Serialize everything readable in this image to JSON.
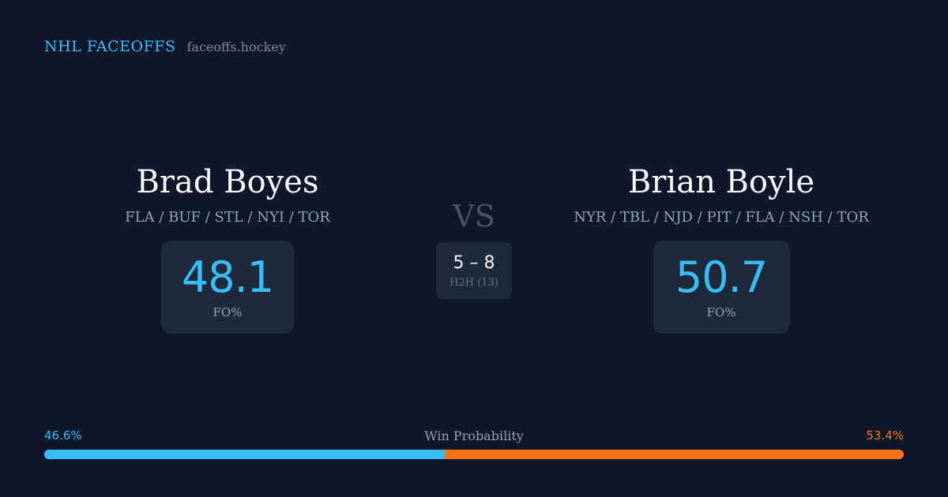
{
  "header": {
    "brand": "NHL FACEOFFS",
    "site": "faceoffs.hockey"
  },
  "player_left": {
    "name": "Brad Boyes",
    "teams": "FLA / BUF / STL / NYI / TOR",
    "stat_value": "48.1",
    "stat_label": "FO%"
  },
  "player_right": {
    "name": "Brian Boyle",
    "teams": "NYR / TBL / NJD / PIT / FLA / NSH / TOR",
    "stat_value": "50.7",
    "stat_label": "FO%"
  },
  "matchup": {
    "vs": "VS",
    "h2h_score": "5 – 8",
    "h2h_label": "H2H (13)"
  },
  "win_probability": {
    "title": "Win Probability",
    "left_label": "46.6%",
    "right_label": "53.4%",
    "left_fraction": 0.466,
    "right_fraction": 0.534
  },
  "colors": {
    "background": "#0f172a",
    "accent_left": "#38bdf8",
    "accent_right": "#f97316",
    "card": "#1e293b"
  }
}
